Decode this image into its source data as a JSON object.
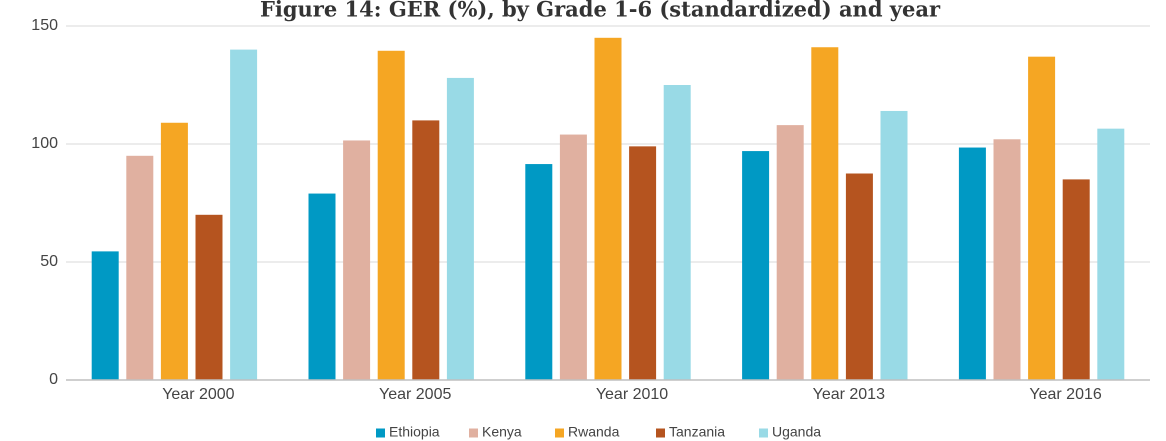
{
  "chart_data": {
    "type": "bar",
    "title": "Figure 14: GER (%), by Grade 1-6 (standardized) and year",
    "xlabel": "",
    "ylabel": "",
    "categories": [
      "Year 2000",
      "Year 2005",
      "Year 2010",
      "Year 2013",
      "Year 2016"
    ],
    "series": [
      {
        "name": "Ethiopia",
        "color": "#0099c4",
        "values": [
          54.5,
          79,
          91.5,
          97,
          98.5
        ]
      },
      {
        "name": "Kenya",
        "color": "#e0b0a0",
        "values": [
          95,
          101.5,
          104,
          108,
          102
        ]
      },
      {
        "name": "Rwanda",
        "color": "#f5a623",
        "values": [
          109,
          139.5,
          145,
          141,
          137
        ]
      },
      {
        "name": "Tanzania",
        "color": "#b5541f",
        "values": [
          70,
          110,
          99,
          87.5,
          85
        ]
      },
      {
        "name": "Uganda",
        "color": "#99dae6",
        "values": [
          140,
          128,
          125,
          114,
          106.5
        ]
      }
    ],
    "yticks": [
      "0",
      "50",
      "100",
      "150"
    ],
    "ylim": [
      0,
      150
    ],
    "grid": true,
    "legend_position": "bottom"
  }
}
